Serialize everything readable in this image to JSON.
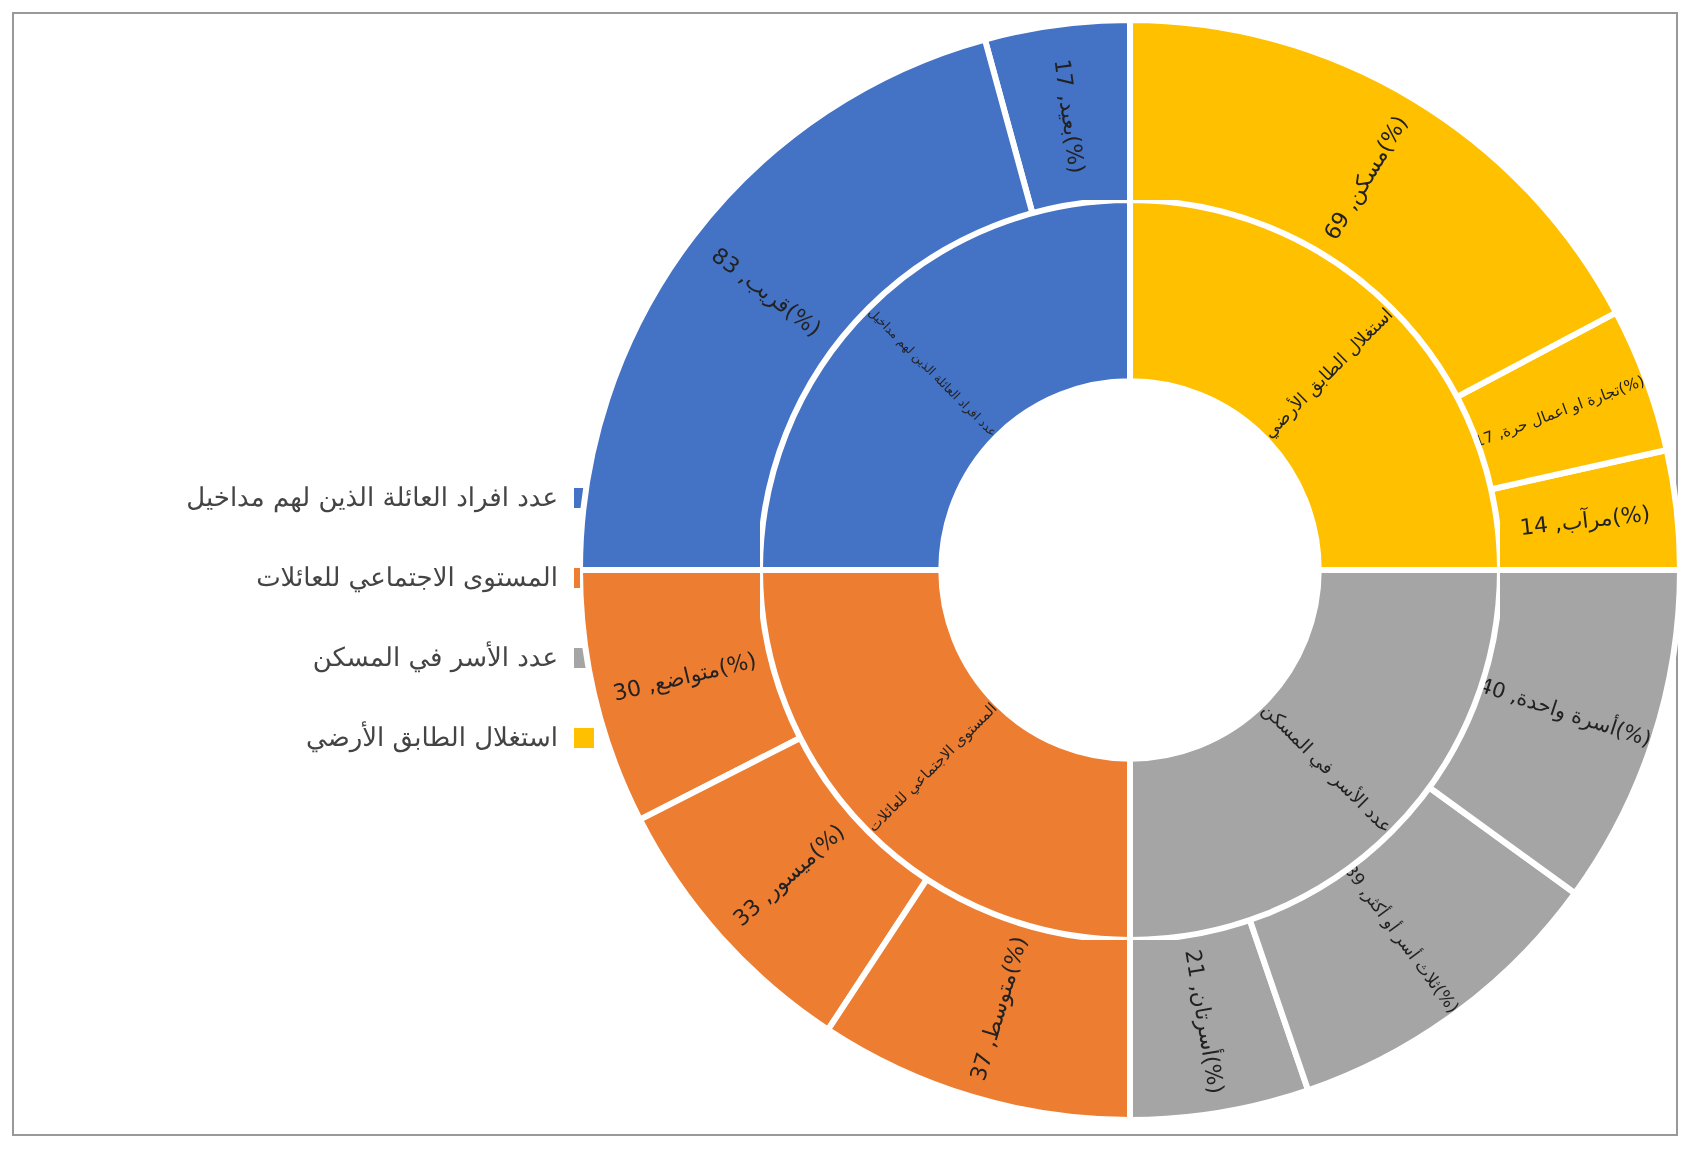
{
  "chart_data": [
    {
      "type": "donut",
      "legend": "left",
      "categories": [
        "عدد افراد العائلة الذين لهم مداخيل",
        "المستوى الاجتماعي للعائلات",
        "عدد الأسر في المسكن",
        "استغلال الطابق الأرضي"
      ],
      "colors": [
        "#4472c4",
        "#ed7d31",
        "#a5a5a5",
        "#ffc000"
      ],
      "values": [
        25,
        25,
        25,
        25
      ]
    },
    {
      "type": "donut",
      "categories": [
        "بعيد",
        "قريب",
        "متواضع",
        "ميسور",
        "متوسط",
        "أسرتان",
        "ثلاث أسر أو أكثر",
        "أسرة واحدة",
        "مرآب",
        "تجارة او اعمال حرة",
        "مسكن"
      ],
      "colors": [
        "#4472c4",
        "#4472c4",
        "#ed7d31",
        "#ed7d31",
        "#ed7d31",
        "#a5a5a5",
        "#a5a5a5",
        "#a5a5a5",
        "#ffc000",
        "#ffc000",
        "#ffc000"
      ],
      "values": [
        17,
        83,
        30,
        33,
        37,
        21,
        39,
        40,
        14,
        17,
        69
      ],
      "value_labels": [
        "17(%)",
        "83(%)",
        "30(%)",
        "33(%)",
        "37(%)",
        "21(%)",
        "39(%)",
        "40(%)",
        "14(%)",
        "17(%)",
        "69(%)"
      ]
    }
  ]
}
